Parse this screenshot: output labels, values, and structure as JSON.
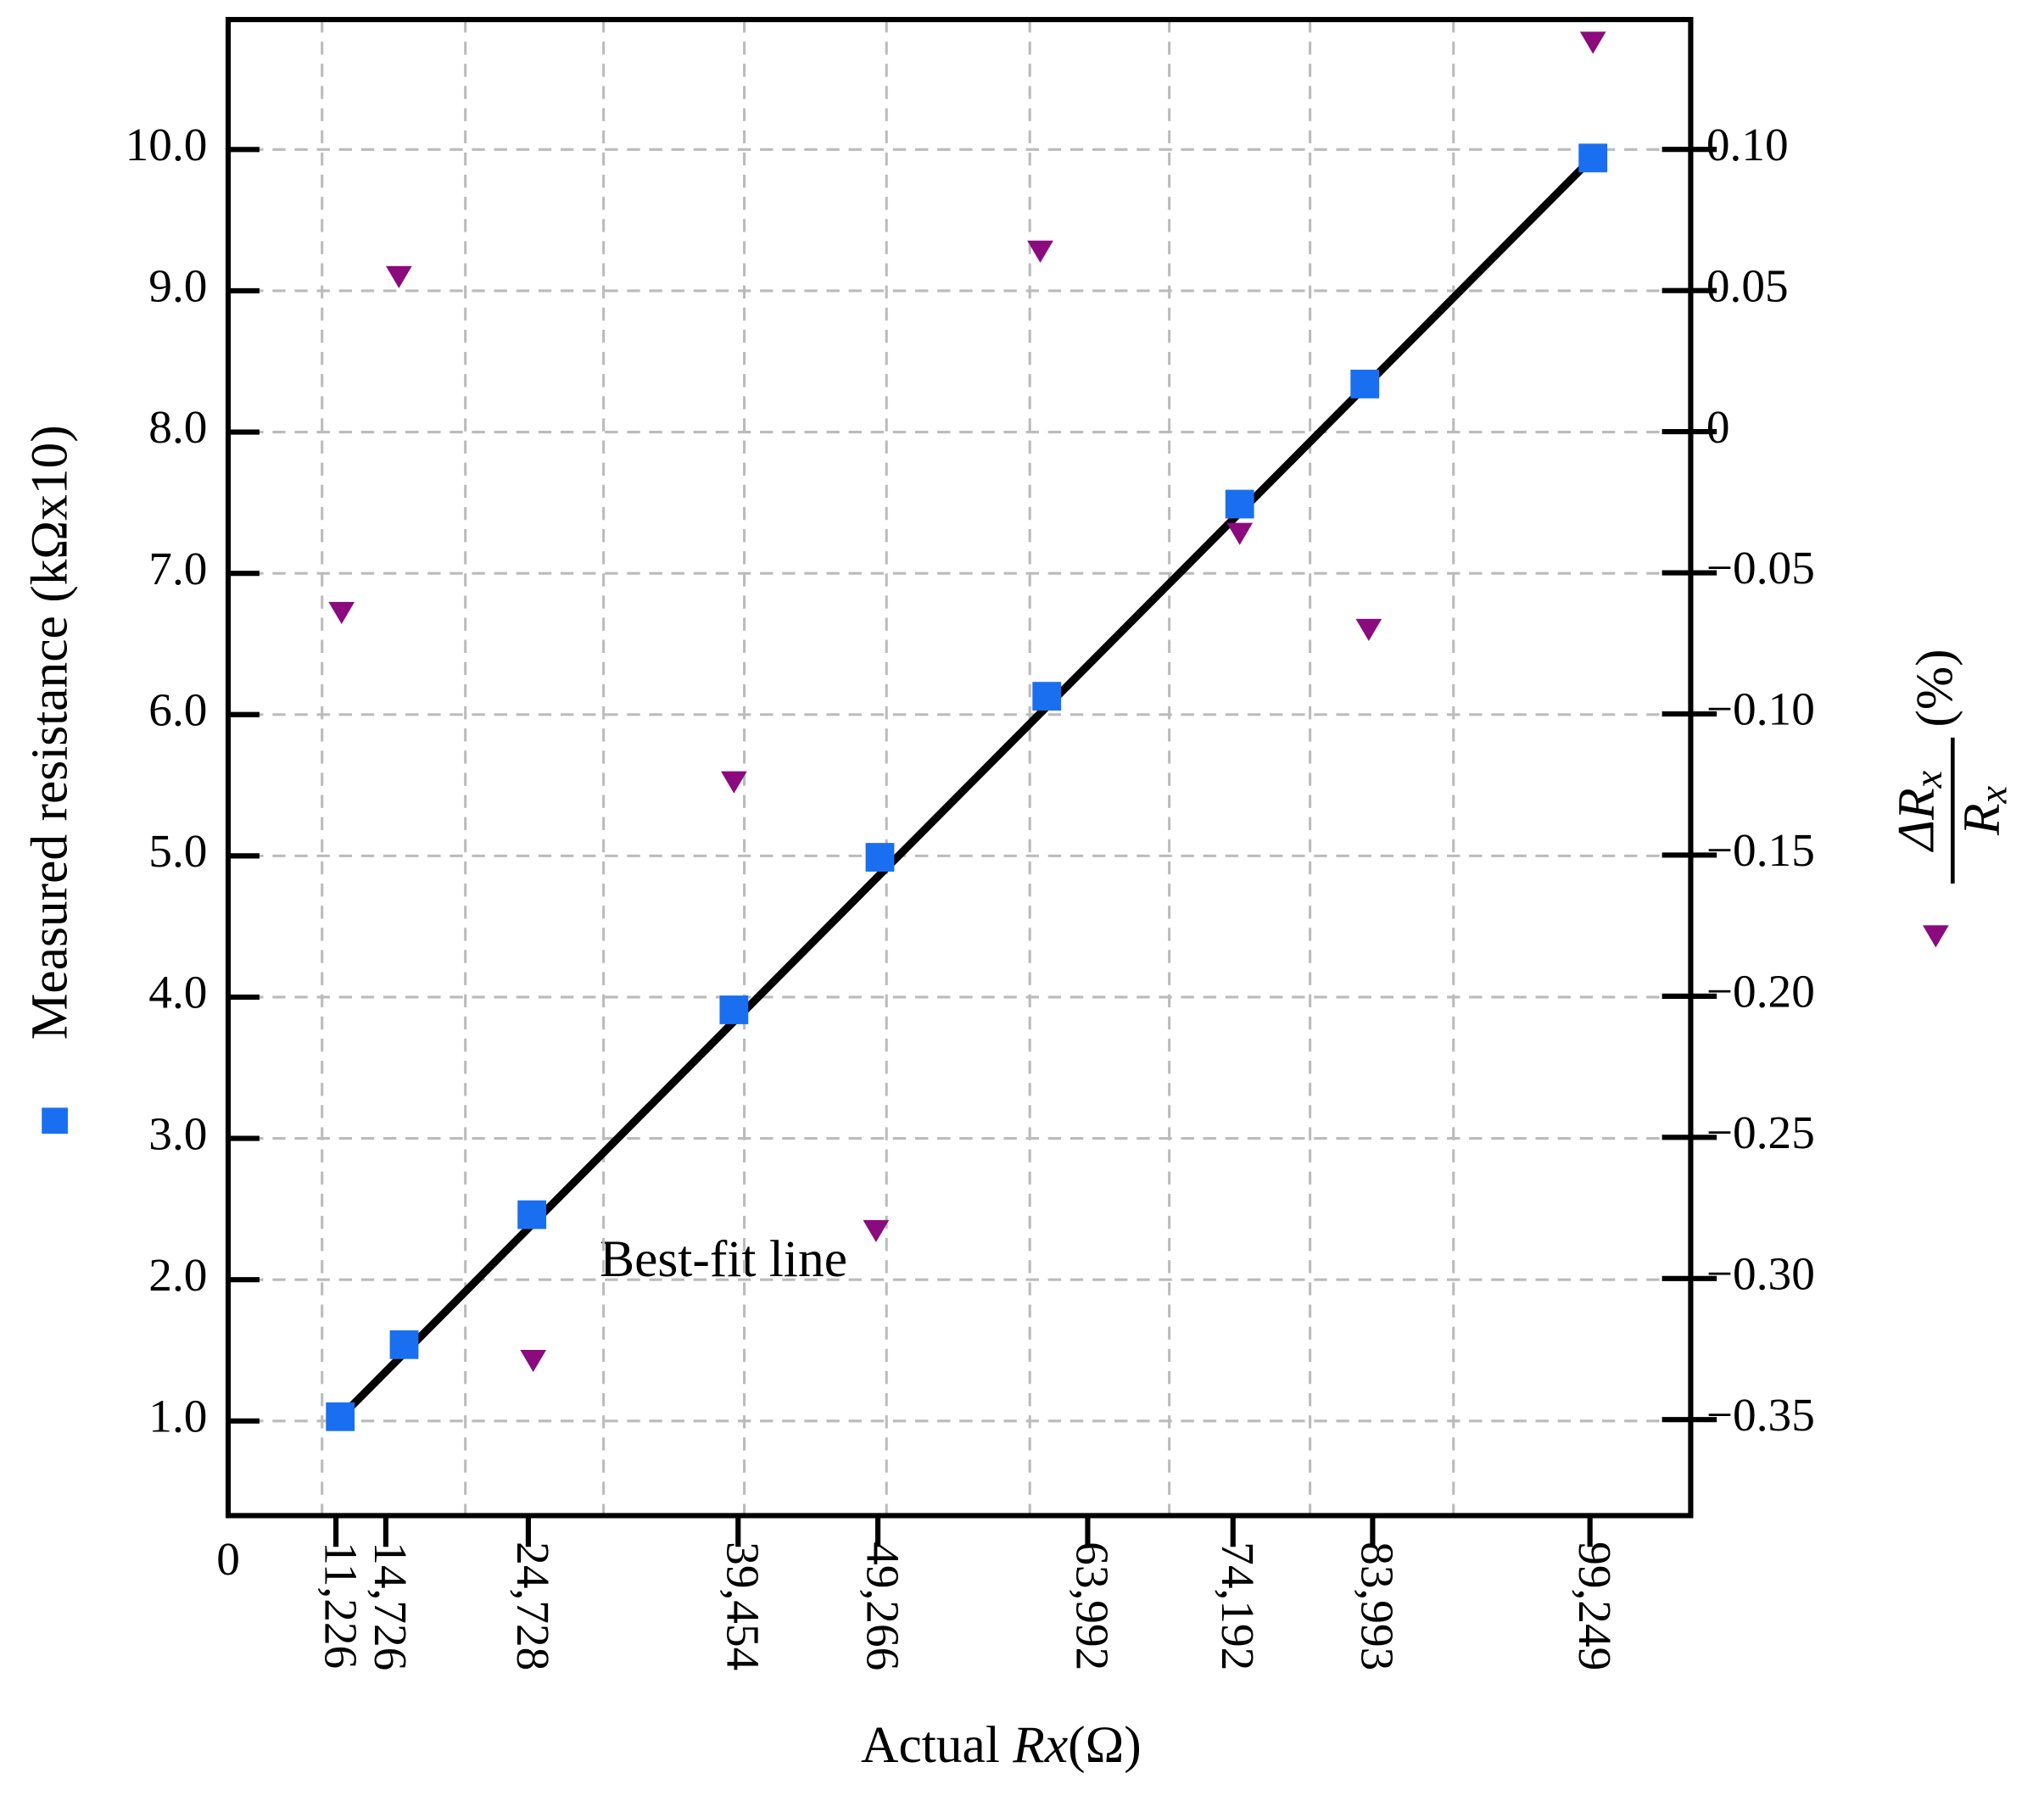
{
  "chart_data": {
    "type": "scatter",
    "xlabel": {
      "prefix": "Actual ",
      "var": "Rx",
      "suffix": "(Ω)"
    },
    "ylabel": "Measured resistance (kΩx10)",
    "y2label": {
      "numerator": "ΔR",
      "numerator_sub": "x",
      "denominator": "R",
      "denominator_sub": "x",
      "unit": "(%)"
    },
    "origin_label": "0",
    "annotation": "Best-fit line",
    "xlim": [
      3660,
      106320
    ],
    "ylim": [
      0.33,
      10.92
    ],
    "y2lim": [
      -0.384,
      0.146
    ],
    "xticks": [
      {
        "value": 11226,
        "label": "11,226"
      },
      {
        "value": 14726,
        "label": "14,726"
      },
      {
        "value": 24728,
        "label": "24,728"
      },
      {
        "value": 39454,
        "label": "39,454"
      },
      {
        "value": 49266,
        "label": "49,266"
      },
      {
        "value": 63992,
        "label": "63,992"
      },
      {
        "value": 74192,
        "label": "74,192"
      },
      {
        "value": 83993,
        "label": "83,993"
      },
      {
        "value": 99249,
        "label": "99,249"
      }
    ],
    "yticks": [
      {
        "value": 1,
        "label": "1.0"
      },
      {
        "value": 2,
        "label": "2.0"
      },
      {
        "value": 3,
        "label": "3.0"
      },
      {
        "value": 4,
        "label": "4.0"
      },
      {
        "value": 5,
        "label": "5.0"
      },
      {
        "value": 6,
        "label": "6.0"
      },
      {
        "value": 7,
        "label": "7.0"
      },
      {
        "value": 8,
        "label": "8.0"
      },
      {
        "value": 9,
        "label": "9.0"
      },
      {
        "value": 10,
        "label": "10.0"
      }
    ],
    "y2ticks": [
      {
        "value": 0.1,
        "label": "0.10"
      },
      0.05,
      0,
      {
        "value": -0.05,
        "label": "−0.05"
      },
      {
        "value": -0.1,
        "label": "−0.10"
      },
      {
        "value": -0.15,
        "label": "−0.15"
      },
      {
        "value": -0.2,
        "label": "−0.20"
      },
      {
        "value": -0.25,
        "label": "−0.25"
      },
      {
        "value": -0.3,
        "label": "−0.30"
      },
      {
        "value": -0.35,
        "label": "−0.35"
      }
    ],
    "xgrid": [
      10250,
      20310,
      30010,
      39890,
      49870,
      59930,
      69720,
      79600,
      89670
    ],
    "grid": true,
    "series": [
      {
        "color": "#000000",
        "marker": "line",
        "x": [
          12170,
          98820
        ],
        "values": [
          1.09,
          9.88
        ]
      },
      {
        "color": "#1a6ff0",
        "marker": "square",
        "x": [
          11529,
          16012,
          24980,
          39162,
          49410,
          61122,
          74664,
          83448,
          99460
        ],
        "values": [
          1.03,
          1.54,
          2.46,
          3.91,
          4.99,
          6.13,
          7.49,
          8.34,
          9.94
        ]
      },
      {
        "color": "#8b0a7e",
        "marker": "triangle-down",
        "axis": "y2",
        "x": [
          11620,
          15646,
          25071,
          39162,
          49135,
          60664,
          74664,
          83722,
          99460
        ],
        "values": [
          -0.064,
          0.055,
          -0.329,
          -0.124,
          -0.283,
          0.064,
          -0.036,
          -0.07,
          0.138
        ]
      }
    ]
  }
}
